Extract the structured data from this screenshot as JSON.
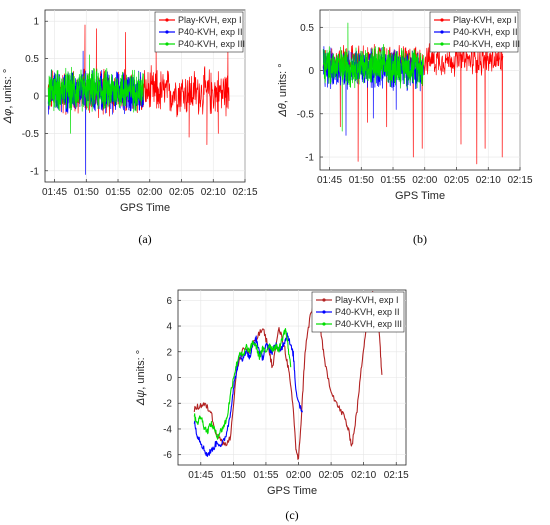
{
  "chart_data": [
    {
      "type": "line",
      "panel_label": "(a)",
      "xlabel": "GPS Time",
      "ylabel": "Δφ, units: °",
      "ylabel_sym": "Δφ",
      "ylabel_rest": ", units: °",
      "xlim": [
        103.5,
        135
      ],
      "ylim": [
        -1.15,
        1.15
      ],
      "x_ticks": [
        105,
        110,
        115,
        120,
        125,
        130,
        135
      ],
      "x_tick_labels": [
        "01:45",
        "01:50",
        "01:55",
        "02:00",
        "02:05",
        "02:10",
        "02:15"
      ],
      "y_ticks": [
        -1,
        -0.5,
        0,
        0.5,
        1
      ],
      "y_tick_labels": [
        "-1",
        "-0.5",
        "0",
        "0.5",
        "1"
      ],
      "grid": true,
      "legend_position": "top-right",
      "series": [
        {
          "name": "Play-KVH, exp I",
          "color": "#ff0000",
          "x_start": 104,
          "x_end": 132.5,
          "base": 0.05,
          "amp": 0.25,
          "spikes": [
            [
              109.8,
              0.95
            ],
            [
              111.6,
              0.9
            ],
            [
              116.2,
              0.85
            ],
            [
              121,
              0.6
            ],
            [
              132.3,
              0.6
            ],
            [
              126.2,
              -0.55
            ],
            [
              129,
              -0.65
            ],
            [
              130.8,
              -0.5
            ]
          ]
        },
        {
          "name": "P40-KVH, exp II",
          "color": "#0000ff",
          "x_start": 104,
          "x_end": 119,
          "base": 0.05,
          "amp": 0.22,
          "spikes": [
            [
              109.9,
              -1.05
            ],
            [
              109.5,
              0.6
            ]
          ]
        },
        {
          "name": "P40-KVH, exp III",
          "color": "#00dd00",
          "x_start": 104,
          "x_end": 119,
          "base": 0.08,
          "amp": 0.22,
          "spikes": [
            [
              107.5,
              -0.5
            ],
            [
              110.5,
              0.55
            ]
          ]
        }
      ]
    },
    {
      "type": "line",
      "panel_label": "(b)",
      "xlabel": "GPS Time",
      "ylabel": "Δθ, units: °",
      "ylabel_sym": "Δθ",
      "ylabel_rest": ", units: °",
      "xlim": [
        103.5,
        135
      ],
      "ylim": [
        -1.15,
        0.7
      ],
      "x_ticks": [
        105,
        110,
        115,
        120,
        125,
        130,
        135
      ],
      "x_tick_labels": [
        "01:45",
        "01:50",
        "01:55",
        "02:00",
        "02:05",
        "02:10",
        "02:15"
      ],
      "y_ticks": [
        -1,
        -0.5,
        0,
        0.5
      ],
      "y_tick_labels": [
        "-1",
        "-0.5",
        "0",
        "0.5"
      ],
      "grid": true,
      "legend_position": "top-right",
      "series": [
        {
          "name": "Play-KVH, exp I",
          "color": "#ff0000",
          "x_start": 104,
          "x_end": 132.3,
          "base": 0.12,
          "amp": 0.14,
          "spikes": [
            [
              106.7,
              -0.65
            ],
            [
              109.5,
              -1.05
            ],
            [
              111,
              -0.6
            ],
            [
              114,
              -0.65
            ],
            [
              118.2,
              -1.0
            ],
            [
              125.7,
              -0.85
            ],
            [
              128.2,
              -1.08
            ],
            [
              129.5,
              -0.9
            ],
            [
              132.2,
              -1.0
            ],
            [
              119.6,
              -0.9
            ]
          ]
        },
        {
          "name": "P40-KVH, exp II",
          "color": "#0000ff",
          "x_start": 104,
          "x_end": 119.8,
          "base": 0.02,
          "amp": 0.18,
          "spikes": [
            [
              107.6,
              -0.75
            ],
            [
              111.9,
              -0.55
            ],
            [
              115.5,
              -0.45
            ]
          ]
        },
        {
          "name": "P40-KVH, exp III",
          "color": "#00dd00",
          "x_start": 104,
          "x_end": 119.8,
          "base": 0.05,
          "amp": 0.18,
          "spikes": [
            [
              107,
              -0.7
            ],
            [
              107.9,
              0.55
            ]
          ]
        }
      ]
    },
    {
      "type": "line",
      "panel_label": "(c)",
      "xlabel": "GPS Time",
      "ylabel": "Δψ, units: °",
      "ylabel_sym": "Δψ",
      "ylabel_rest": ", units: °",
      "xlim": [
        101.5,
        136.5
      ],
      "ylim": [
        -6.8,
        6.8
      ],
      "x_ticks": [
        105,
        110,
        115,
        120,
        125,
        130,
        135
      ],
      "x_tick_labels": [
        "01:45",
        "01:50",
        "01:55",
        "02:00",
        "02:05",
        "02:10",
        "02:15"
      ],
      "y_ticks": [
        -6,
        -4,
        -2,
        0,
        2,
        4,
        6
      ],
      "y_tick_labels": [
        "-6",
        "-4",
        "-2",
        "0",
        "2",
        "4",
        "6"
      ],
      "grid": true,
      "legend_position": "top-right",
      "series": [
        {
          "name": "Play-KVH, exp I",
          "color": "#b22222",
          "x": [
            104,
            104.8,
            105.5,
            106.5,
            107.3,
            108.5,
            109.5,
            110.5,
            111.5,
            112.5,
            113.5,
            114.5,
            115.3,
            116,
            117,
            117.8,
            118.5,
            119.2,
            119.6,
            120,
            120.5,
            121,
            121.8,
            122.5,
            123.3,
            124,
            125,
            126,
            127,
            127.6,
            128.2,
            129,
            129.8,
            130.5,
            131.3,
            132,
            132.4,
            132.8
          ],
          "y": [
            -2.5,
            -2.2,
            -2.1,
            -2.6,
            -4.2,
            -5.2,
            -4.8,
            0.5,
            2.3,
            2.0,
            3.0,
            3.8,
            2.5,
            0.8,
            3.8,
            2.5,
            0.5,
            -2.5,
            -5.5,
            -6.5,
            -2.5,
            2.0,
            4.8,
            5.8,
            4.2,
            1.2,
            -1.0,
            -2.2,
            -3.0,
            -4.0,
            -5.3,
            -2.5,
            1.5,
            4.5,
            6.6,
            5.5,
            3.5,
            0.2
          ]
        },
        {
          "name": "P40-KVH, exp II",
          "color": "#0000ff",
          "x": [
            104,
            104.5,
            105,
            105.5,
            106,
            106.8,
            107.5,
            108.2,
            108.8,
            109.5,
            110,
            110.5,
            111,
            111.5,
            112,
            112.5,
            113,
            113.5,
            114,
            114.5,
            115,
            115.5,
            116,
            116.5,
            117,
            117.5,
            118,
            118.3,
            118.7,
            119.2,
            119.6,
            120.2,
            120.6
          ],
          "y": [
            -3.5,
            -4.5,
            -5.0,
            -5.6,
            -6.0,
            -5.6,
            -5.0,
            -5.3,
            -4.6,
            -3.0,
            -0.8,
            0.5,
            1.8,
            1.4,
            2.2,
            1.5,
            2.5,
            3.0,
            2.0,
            1.5,
            2.5,
            2.2,
            2.0,
            2.6,
            2.0,
            2.4,
            3.0,
            3.4,
            2.6,
            1.8,
            -1.0,
            -2.2,
            -2.6
          ]
        },
        {
          "name": "P40-KVH, exp III",
          "color": "#00dd00",
          "x": [
            104,
            104.5,
            105,
            105.5,
            106,
            106.5,
            107,
            107.5,
            108,
            108.5,
            109,
            109.5,
            110,
            110.5,
            111,
            111.5,
            112,
            112.5,
            113,
            113.5,
            114,
            114.5,
            115,
            115.5,
            116,
            116.5,
            117,
            117.5,
            118,
            118.4,
            118.8
          ],
          "y": [
            -3.0,
            -3.5,
            -3.0,
            -3.8,
            -4.2,
            -3.6,
            -3.9,
            -4.6,
            -4.2,
            -3.8,
            -3.2,
            -1.5,
            0.0,
            1.0,
            2.0,
            1.6,
            2.4,
            2.0,
            2.8,
            2.4,
            1.6,
            2.2,
            2.0,
            2.6,
            2.2,
            2.4,
            2.2,
            3.0,
            3.8,
            2.4,
            0.8
          ]
        }
      ]
    }
  ]
}
